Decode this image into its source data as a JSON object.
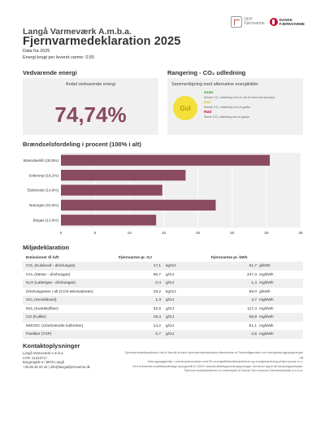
{
  "header": {
    "company": "Langå Varmeværk A.m.b.a.",
    "title": "Fjernvarmedeklaration 2025",
    "data_line": "Data fra 2025",
    "energy_line": "Energi brugt per leveret varme: 0,55",
    "logo_left_text": [
      "DFH",
      "Fjernvarme"
    ],
    "logo_right_text": [
      "DANSK",
      "FJERNVARME"
    ]
  },
  "vedvarende": {
    "title": "Vedvarende energi",
    "subtitle": "Andel vedvarende energi",
    "value": "74,74%"
  },
  "rangering": {
    "title": "Rangering - CO₂ udledning",
    "subtitle": "Sammenligning med alternative energikilder",
    "badge": "Gul",
    "items": [
      {
        "name": "Grøn",
        "desc": "Mindre CO₂ udledning end en luft til vand varmepumpe",
        "color": "#3a9a3a"
      },
      {
        "name": "Gul",
        "desc": "Mindre CO₂ udledning end et gasfyr",
        "color": "#e0c200"
      },
      {
        "name": "Rød",
        "desc": "Større CO₂ udledning end et gasfyr",
        "color": "#c8102e"
      }
    ]
  },
  "braendsel": {
    "title": "Brændselsfordeling i procent (100% i alt)"
  },
  "chart_data": {
    "type": "bar",
    "orientation": "horizontal",
    "categories": [
      "Brændselsfri (30,5%)",
      "Solenergi (18,2%)",
      "Elektricitet (14,8%)",
      "Naturgas (22,6%)",
      "Biogas (13,9%)"
    ],
    "values": [
      30.5,
      18.2,
      14.8,
      22.6,
      13.9
    ],
    "x_ticks": [
      "0",
      "5",
      "10",
      "15",
      "20",
      "25",
      "30",
      "35"
    ],
    "xlim": [
      0,
      35
    ],
    "bar_color": "#8a4a60",
    "grid": true
  },
  "miljo": {
    "title": "Miljødeklaration",
    "headers": {
      "col1": "Emissioner til luft",
      "col2": "Fjernvarme pr. GJ",
      "col3": "Fjernvarme pr. kWh"
    },
    "rows": [
      {
        "name": "CO₂ (Kuldioxid - drivhusgas)",
        "gj": "17,1",
        "gj_unit": "kg/GJ",
        "kwh": "61,7",
        "kwh_unit": "g/kWh"
      },
      {
        "name": "CH₄ (Metan - drivhusgas)",
        "gj": "68,7",
        "gj_unit": "g/GJ",
        "kwh": "247,3",
        "kwh_unit": "mg/kWh"
      },
      {
        "name": "N₂O (Lattergas - drivhusgas)",
        "gj": "0,4",
        "gj_unit": "g/GJ",
        "kwh": "1,4",
        "kwh_unit": "mg/kWh"
      },
      {
        "name": "Drivhusgasser i alt (CO2-ækvivalenter)",
        "gj": "19,2",
        "gj_unit": "kg/GJ",
        "kwh": "69,0",
        "kwh_unit": "g/kWh"
      },
      {
        "name": "SO₂ (Svovldioxid)",
        "gj": "1,3",
        "gj_unit": "g/GJ",
        "kwh": "4,7",
        "kwh_unit": "mg/kWh"
      },
      {
        "name": "NOₓ (Kvælstofilter)",
        "gj": "32,6",
        "gj_unit": "g/GJ",
        "kwh": "117,4",
        "kwh_unit": "mg/kWh"
      },
      {
        "name": "CO (Kulilte)",
        "gj": "19,4",
        "gj_unit": "g/GJ",
        "kwh": "69,8",
        "kwh_unit": "mg/kWh"
      },
      {
        "name": "NMVOC (Uforbrændte kulbrinter)",
        "gj": "14,2",
        "gj_unit": "g/GJ",
        "kwh": "51,1",
        "kwh_unit": "mg/kWh"
      },
      {
        "name": "Partikler (TSP)",
        "gj": "0,7",
        "gj_unit": "g/GJ",
        "kwh": "2,5",
        "kwh_unit": "mg/kWh"
      }
    ]
  },
  "kontakt": {
    "title": "Kontaktoplysninger",
    "lines": [
      "Langå Varmeværk A.m.b.a.",
      "CVR: 31223717",
      "Borgergade 6 | 8870 Langå",
      "+45 86 46 20 44 | info@langaafjernvarme.dk"
    ],
    "disclaimer": [
      "Fjernvarmedeklarationen har til formål at sikre fjernvarmeselskabets efterlevelse af Telebrdfgørelsen om energiforbrugsoplysninger og",
      "forbrugsopgørelse i overensstemmelse med EU-energieffektivitetsdirektivet og energimærkning af fjernvarme m.v.",
      "Ved eventuelle kvalitetsmæssige spørgsmål til 100% varmekvalitetsgaranteoplysninger, henvend dig til dit forsyningsselskab.",
      "Fjernvarmedeklarationen er udarbejdet af Dansk Fjernvarmes Handelsselskab a.m.b.a."
    ]
  }
}
